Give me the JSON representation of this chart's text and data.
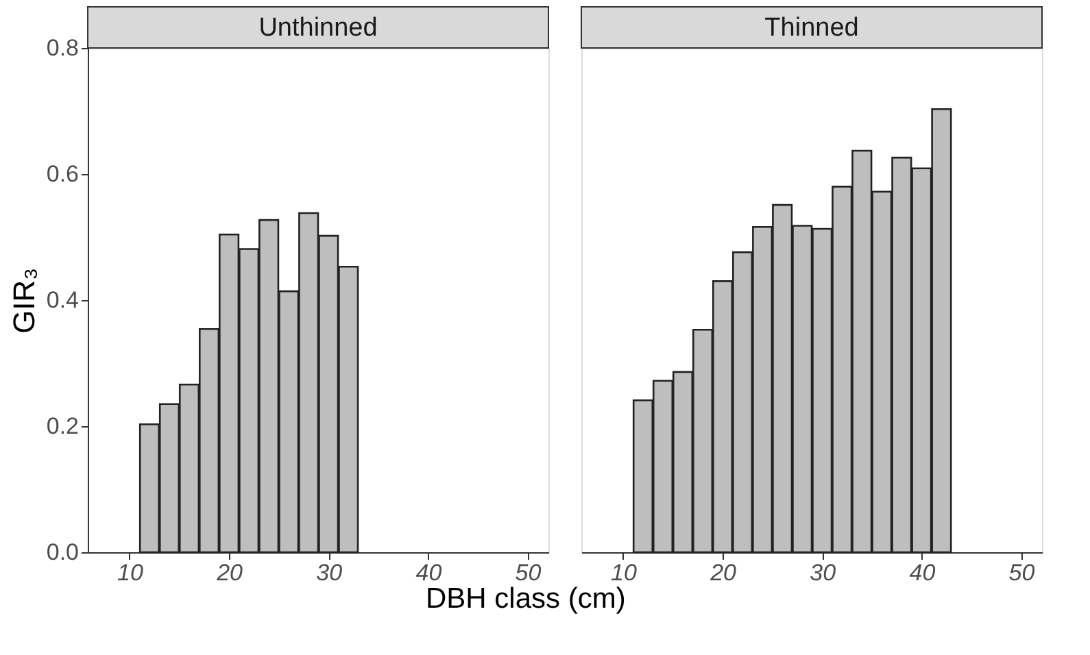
{
  "chart_data": [
    {
      "type": "bar",
      "title": "Unthinned",
      "xlabel": "DBH class (cm)",
      "ylabel": "GIR₃",
      "color": "#bebebe",
      "grid": false,
      "x": [
        12,
        14,
        16,
        18,
        20,
        22,
        24,
        26,
        28,
        30,
        32
      ],
      "values": [
        0.203,
        0.235,
        0.266,
        0.354,
        0.504,
        0.481,
        0.527,
        0.414,
        0.538,
        0.502,
        0.453
      ],
      "xlim": [
        5.8,
        52.1
      ],
      "xticks": [
        10,
        20,
        30,
        40,
        50
      ],
      "ylim": [
        0,
        0.8
      ],
      "yticks": [
        {
          "value": 0,
          "label": "0.0"
        },
        0.2,
        0.4,
        0.6,
        0.8
      ]
    },
    {
      "type": "bar",
      "title": "Thinned",
      "color": "#bebebe",
      "grid": false,
      "tick_labels": "x",
      "x": [
        12,
        14,
        16,
        18,
        20,
        22,
        24,
        26,
        28,
        30,
        32,
        34,
        36,
        38,
        40,
        42
      ],
      "values": [
        0.241,
        0.272,
        0.286,
        0.353,
        0.43,
        0.476,
        0.516,
        0.551,
        0.518,
        0.513,
        0.58,
        0.637,
        0.572,
        0.626,
        0.609,
        0.703
      ],
      "xlim": [
        5.8,
        52.1
      ],
      "xticks": [
        10,
        20,
        30,
        40,
        50
      ],
      "ylim": [
        0,
        0.8
      ],
      "yticks": [
        0,
        0.2,
        0.4,
        0.6,
        0.8
      ]
    }
  ]
}
